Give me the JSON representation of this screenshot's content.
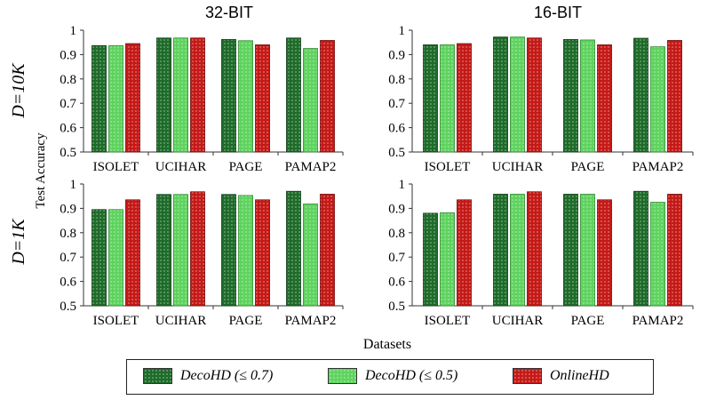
{
  "colors": {
    "decohd_07": "#1e6b2a",
    "decohd_05": "#5fd35f",
    "onlinehd": "#c41a17"
  },
  "figure": {
    "col_titles": [
      "32-BIT",
      "16-BIT"
    ],
    "row_labels": [
      "D=10K",
      "D=1K"
    ],
    "ylabel": "Test Accuracy",
    "xlabel": "Datasets"
  },
  "legend": {
    "items": [
      {
        "label": "DecoHD (≤ 0.7)",
        "color": "#1e6b2a"
      },
      {
        "label": "DecoHD (≤ 0.5)",
        "color": "#5fd35f"
      },
      {
        "label": "OnlineHD",
        "color": "#c41a17"
      }
    ]
  },
  "chart_data": [
    {
      "type": "bar",
      "title": "32-BIT",
      "row": "D=10K",
      "categories": [
        "ISOLET",
        "UCIHAR",
        "PAGE",
        "PAMAP2"
      ],
      "ylim": [
        0.5,
        1.0
      ],
      "yticks": [
        "0.5",
        "0.6",
        "0.7",
        "0.8",
        "0.9",
        "1"
      ],
      "series": [
        {
          "name": "DecoHD (≤ 0.7)",
          "values": [
            0.937,
            0.968,
            0.962,
            0.968
          ]
        },
        {
          "name": "DecoHD (≤ 0.5)",
          "values": [
            0.937,
            0.968,
            0.957,
            0.925
          ]
        },
        {
          "name": "OnlineHD",
          "values": [
            0.945,
            0.968,
            0.94,
            0.958
          ]
        }
      ]
    },
    {
      "type": "bar",
      "title": "16-BIT",
      "row": "D=10K",
      "categories": [
        "ISOLET",
        "UCIHAR",
        "PAGE",
        "PAMAP2"
      ],
      "ylim": [
        0.5,
        1.0
      ],
      "yticks": [
        "0.5",
        "0.6",
        "0.7",
        "0.8",
        "0.9",
        "1"
      ],
      "series": [
        {
          "name": "DecoHD (≤ 0.7)",
          "values": [
            0.94,
            0.972,
            0.962,
            0.967
          ]
        },
        {
          "name": "DecoHD (≤ 0.5)",
          "values": [
            0.94,
            0.972,
            0.96,
            0.932
          ]
        },
        {
          "name": "OnlineHD",
          "values": [
            0.945,
            0.968,
            0.94,
            0.958
          ]
        }
      ]
    },
    {
      "type": "bar",
      "title": "32-BIT",
      "row": "D=1K",
      "categories": [
        "ISOLET",
        "UCIHAR",
        "PAGE",
        "PAMAP2"
      ],
      "ylim": [
        0.5,
        1.0
      ],
      "yticks": [
        "0.5",
        "0.6",
        "0.7",
        "0.8",
        "0.9",
        "1"
      ],
      "series": [
        {
          "name": "DecoHD (≤ 0.7)",
          "values": [
            0.895,
            0.957,
            0.957,
            0.97
          ]
        },
        {
          "name": "DecoHD (≤ 0.5)",
          "values": [
            0.895,
            0.957,
            0.953,
            0.918
          ]
        },
        {
          "name": "OnlineHD",
          "values": [
            0.935,
            0.968,
            0.935,
            0.958
          ]
        }
      ]
    },
    {
      "type": "bar",
      "title": "16-BIT",
      "row": "D=1K",
      "categories": [
        "ISOLET",
        "UCIHAR",
        "PAGE",
        "PAMAP2"
      ],
      "ylim": [
        0.5,
        1.0
      ],
      "yticks": [
        "0.5",
        "0.6",
        "0.7",
        "0.8",
        "0.9",
        "1"
      ],
      "series": [
        {
          "name": "DecoHD (≤ 0.7)",
          "values": [
            0.88,
            0.958,
            0.958,
            0.97
          ]
        },
        {
          "name": "DecoHD (≤ 0.5)",
          "values": [
            0.882,
            0.958,
            0.958,
            0.925
          ]
        },
        {
          "name": "OnlineHD",
          "values": [
            0.935,
            0.968,
            0.935,
            0.958
          ]
        }
      ]
    }
  ]
}
